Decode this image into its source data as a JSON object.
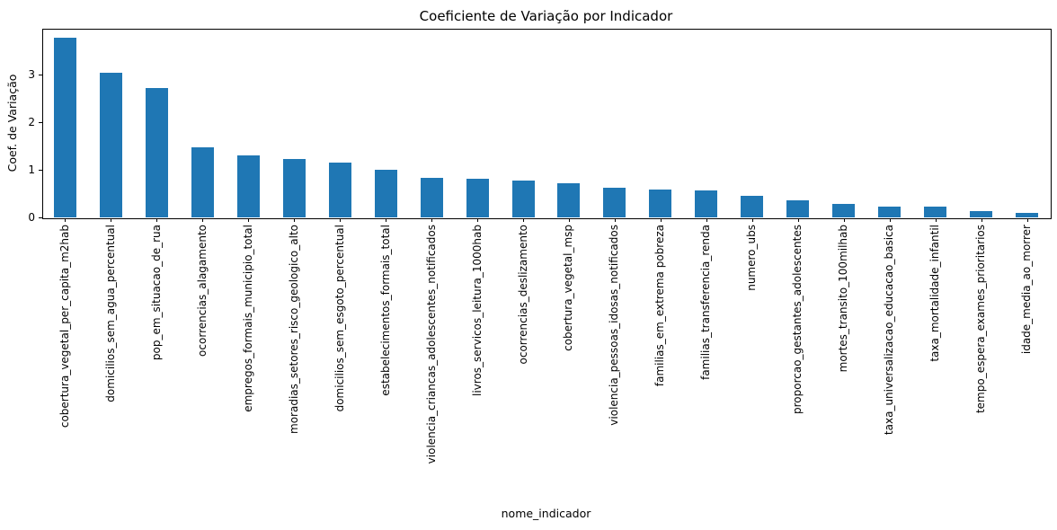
{
  "figure": {
    "background_color": "#ffffff"
  },
  "chart_data": {
    "type": "bar",
    "title": "Coeficiente de Variação por Indicador",
    "xlabel": "nome_indicador",
    "ylabel": "Coef. de Variação",
    "bar_color": "#1f77b4",
    "axis_color": "#000000",
    "grid": false,
    "legend": null,
    "ylim": [
      0,
      3.97
    ],
    "yticks": [
      0,
      1,
      2,
      3
    ],
    "x_tick_rotation": 90,
    "categories": [
      "cobertura_vegetal_per_capita_m2hab",
      "domicilios_sem_agua_percentual",
      "pop_em_situacao_de_rua",
      "ocorrencias_alagamento",
      "empregos_formais_municipio_total",
      "moradias_setores_risco_geologico_alto",
      "domicilios_sem_esgoto_percentual",
      "estabelecimentos_formais_total",
      "violencia_criancas_adolescentes_notificados",
      "livros_servicos_leitura_1000hab",
      "ocorrencias_deslizamento",
      "cobertura_vegetal_msp",
      "violencia_pessoas_idosas_notificados",
      "familias_em_extrema pobreza",
      "familias_transferencia_renda",
      "numero_ubs",
      "proporcao_gestantes_adolescentes",
      "mortes_transito_100milhab",
      "taxa_universalizacao_educacao_basica",
      "taxa_mortalidade_infantil",
      "tempo_espera_exames_prioritarios",
      "idade_media_ao_morrer"
    ],
    "values": [
      3.78,
      3.05,
      2.73,
      1.47,
      1.31,
      1.22,
      1.15,
      1.01,
      0.84,
      0.82,
      0.77,
      0.71,
      0.62,
      0.58,
      0.56,
      0.46,
      0.35,
      0.29,
      0.23,
      0.22,
      0.13,
      0.1
    ]
  }
}
